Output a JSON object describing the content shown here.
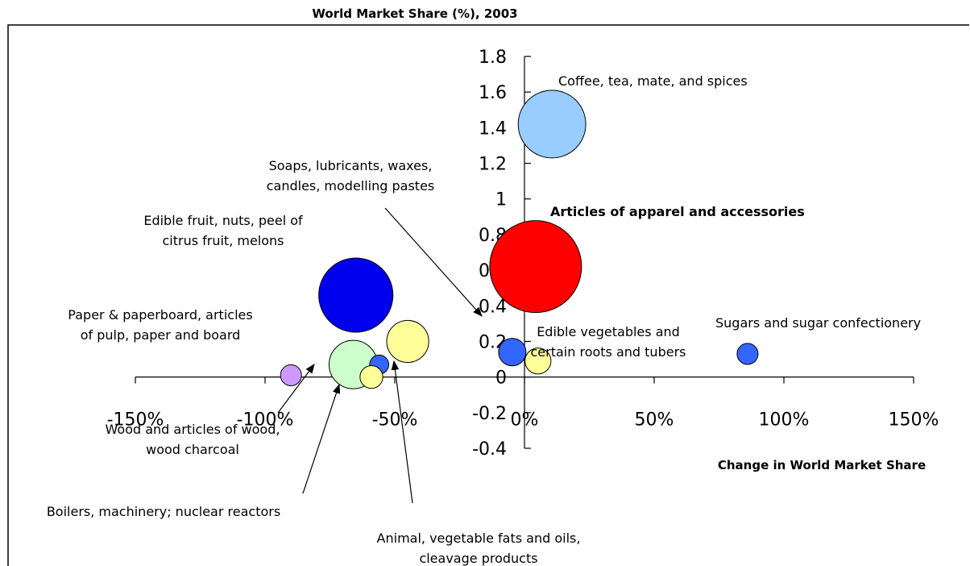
{
  "chart_data": {
    "type": "bubble",
    "title": "World Market Share (%), 2003",
    "x_label": "Change in World Market Share",
    "x": [
      10.6,
      4.3,
      -65,
      -45,
      -66,
      -56,
      -90,
      -59,
      -4.7,
      5.2,
      86
    ],
    "y": [
      1.42,
      0.62,
      0.46,
      0.2,
      0.07,
      0.07,
      0.01,
      0.0,
      0.14,
      0.09,
      0.13
    ],
    "sizes": [
      17.6,
      32.5,
      21.2,
      6.8,
      9,
      1.4,
      1.7,
      2,
      2.9,
      2.6,
      1.7
    ],
    "colors": [
      "#99ccff",
      "#ff0000",
      "#0000ee",
      "#ffff99",
      "#ccffcc",
      "#3366ff",
      "#cc99ff",
      "#ffff99",
      "#3366ff",
      "#ffff99",
      "#3366ff"
    ],
    "xlim": [
      -150,
      150
    ],
    "ylim": [
      -0.4,
      1.8
    ],
    "xticks": [
      {
        "value": -150,
        "label": "-150%"
      },
      {
        "value": -100,
        "label": "-100%"
      },
      {
        "value": -50,
        "label": "-50%"
      },
      {
        "value": 0,
        "label": "0%"
      },
      {
        "value": 50,
        "label": "50%"
      },
      {
        "value": 100,
        "label": "100%"
      },
      {
        "value": 150,
        "label": "150%"
      }
    ],
    "yticks": [
      -0.4,
      -0.2,
      0,
      0.2,
      0.4,
      0.6,
      0.8,
      1,
      1.2,
      1.4,
      1.6,
      1.8
    ],
    "annotations": [
      {
        "lines": [
          "Coffee, tea, mate, and spices"
        ]
      },
      {
        "lines": [
          "Articles of apparel and accessories"
        ]
      },
      {
        "lines": [
          "Soaps, lubricants, waxes,",
          "candles, modelling pastes"
        ]
      },
      {
        "lines": [
          "Edible fruit, nuts, peel of",
          "citrus fruit, melons"
        ]
      },
      {
        "lines": [
          "Paper & paperboard, articles",
          "of pulp, paper and board"
        ]
      },
      {
        "lines": [
          "Edible vegetables and",
          "certain roots and tubers"
        ]
      },
      {
        "lines": [
          "Sugars and sugar confectionery"
        ]
      },
      {
        "lines": [
          "Wood and articles of wood,",
          "wood charcoal"
        ]
      },
      {
        "lines": [
          "Boilers, machinery; nuclear reactors"
        ]
      },
      {
        "lines": [
          "Animal, vegetable fats and oils,",
          "cleavage products"
        ]
      }
    ]
  }
}
